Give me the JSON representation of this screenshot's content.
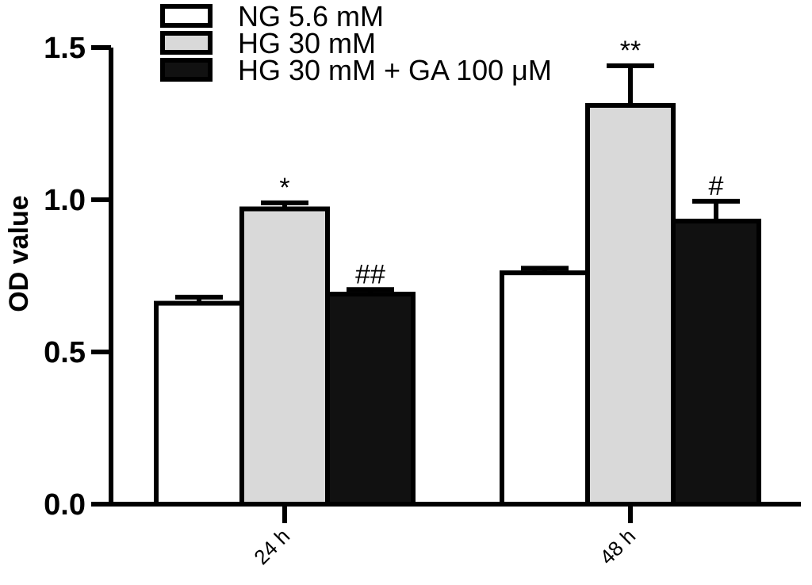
{
  "chart_data": {
    "type": "bar",
    "title": "",
    "xlabel": "",
    "ylabel": "OD value",
    "ylim": [
      0,
      1.5
    ],
    "yticks": [
      "0.0",
      "0.5",
      "1.0",
      "1.5"
    ],
    "ytick_values": [
      0,
      0.5,
      1.0,
      1.5
    ],
    "categories": [
      "24 h",
      "48 h"
    ],
    "legend_position": "top-left",
    "grid": false,
    "series": [
      {
        "name": "NG 5.6 mM",
        "color": "#ffffff",
        "values": [
          0.66,
          0.76
        ],
        "errors": [
          0.02,
          0.015
        ],
        "significance": [
          "",
          ""
        ]
      },
      {
        "name": "HG 30 mM",
        "color": "#d9d9d9",
        "values": [
          0.97,
          1.31
        ],
        "errors": [
          0.02,
          0.13
        ],
        "significance": [
          "*",
          "**"
        ]
      },
      {
        "name": "HG 30 mM + GA 100 μM",
        "color": "#111111",
        "values": [
          0.69,
          0.93
        ],
        "errors": [
          0.015,
          0.065
        ],
        "significance": [
          "##",
          "#"
        ]
      }
    ]
  }
}
